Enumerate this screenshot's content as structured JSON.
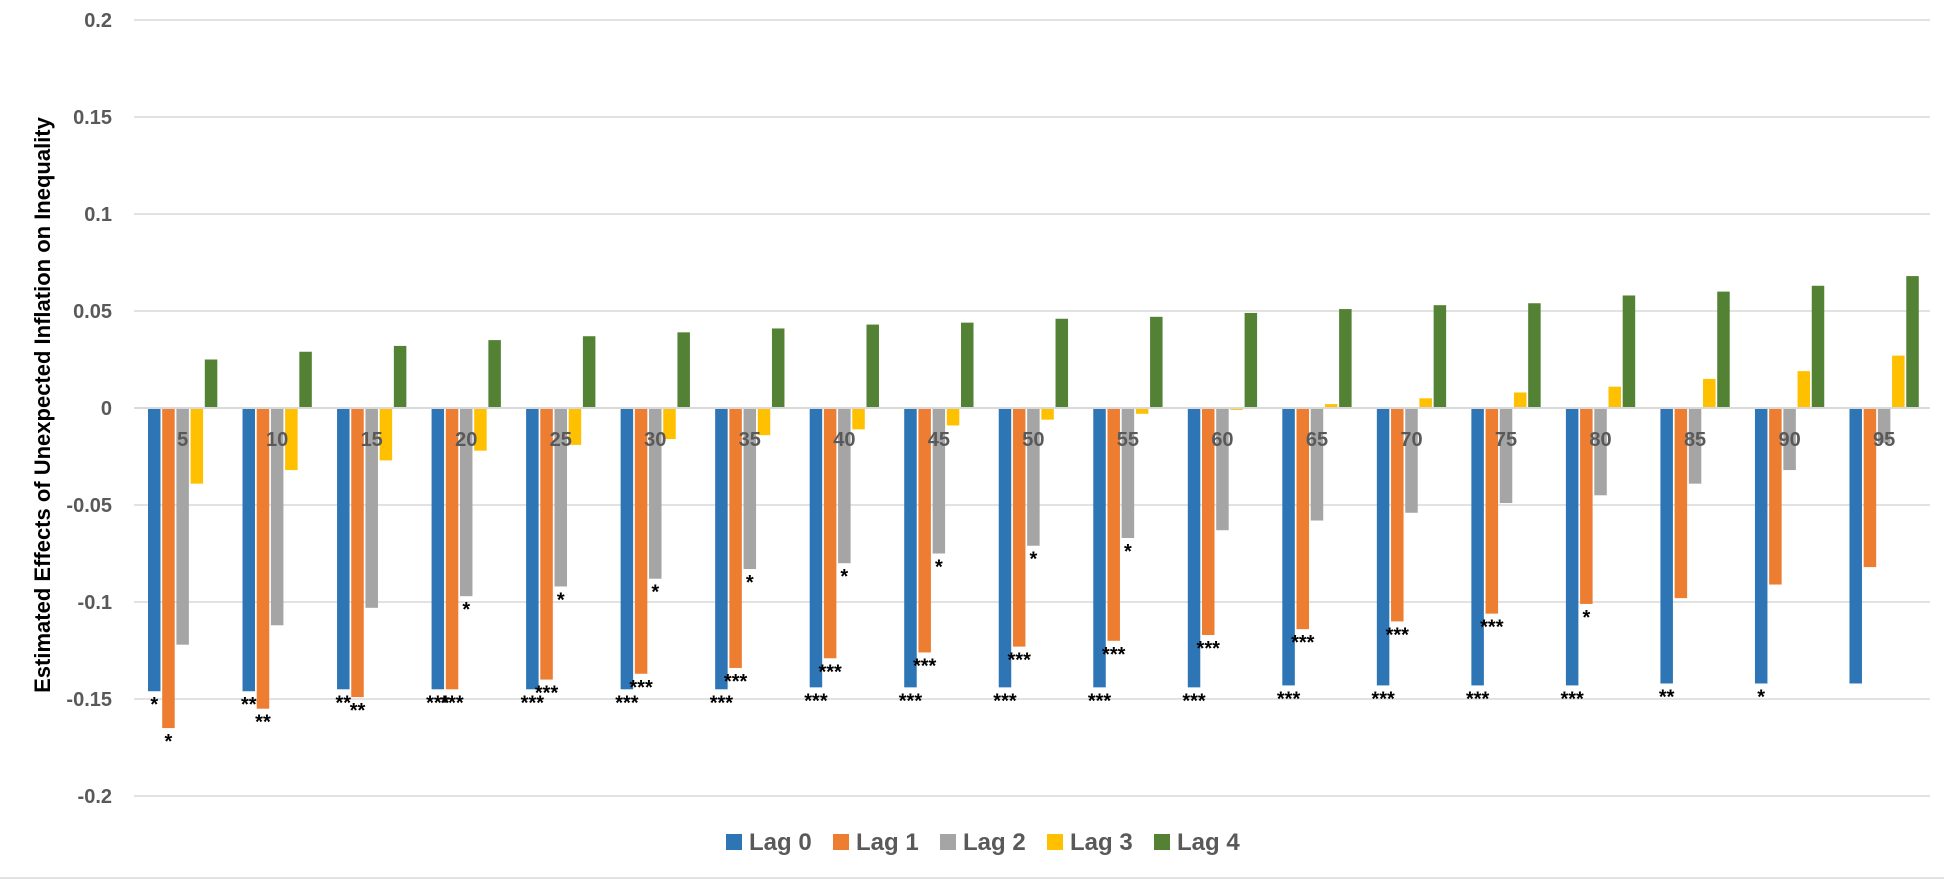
{
  "chart_data": {
    "type": "bar",
    "title": "",
    "xlabel": "",
    "ylabel": "Estimated Effects of Unexpected Inflation on Inequality",
    "ylim": [
      -0.2,
      0.2
    ],
    "yticks": [
      0.2,
      0.15,
      0.1,
      0.05,
      0,
      -0.05,
      -0.1,
      -0.15,
      -0.2
    ],
    "ytick_labels": [
      "0.2",
      "0.15",
      "0.1",
      "0.05",
      "0",
      "-0.05",
      "-0.1",
      "-0.15",
      "-0.2"
    ],
    "grid": true,
    "legend_position": "bottom",
    "categories": [
      "5",
      "10",
      "15",
      "20",
      "25",
      "30",
      "35",
      "40",
      "45",
      "50",
      "55",
      "60",
      "65",
      "70",
      "75",
      "80",
      "85",
      "90",
      "95"
    ],
    "series": [
      {
        "name": "Lag 0",
        "color": "#2E75B6",
        "values": [
          -0.146,
          -0.146,
          -0.145,
          -0.145,
          -0.145,
          -0.145,
          -0.145,
          -0.144,
          -0.144,
          -0.144,
          -0.144,
          -0.144,
          -0.143,
          -0.143,
          -0.143,
          -0.143,
          -0.142,
          -0.142,
          -0.142
        ],
        "significance": [
          "*",
          "**",
          "**",
          "***",
          "***",
          "***",
          "***",
          "***",
          "***",
          "***",
          "***",
          "***",
          "***",
          "***",
          "***",
          "***",
          "**",
          "*",
          ""
        ]
      },
      {
        "name": "Lag 1",
        "color": "#ED7D31",
        "values": [
          -0.165,
          -0.155,
          -0.149,
          -0.145,
          -0.14,
          -0.137,
          -0.134,
          -0.129,
          -0.126,
          -0.123,
          -0.12,
          -0.117,
          -0.114,
          -0.11,
          -0.106,
          -0.101,
          -0.098,
          -0.091,
          -0.082
        ],
        "significance": [
          "*",
          "**",
          "**",
          "***",
          "***",
          "***",
          "***",
          "***",
          "***",
          "***",
          "***",
          "***",
          "***",
          "***",
          "***",
          "*",
          "",
          "",
          ""
        ]
      },
      {
        "name": "Lag 2",
        "color": "#A5A5A5",
        "values": [
          -0.122,
          -0.112,
          -0.103,
          -0.097,
          -0.092,
          -0.088,
          -0.083,
          -0.08,
          -0.075,
          -0.071,
          -0.067,
          -0.063,
          -0.058,
          -0.054,
          -0.049,
          -0.045,
          -0.039,
          -0.032,
          -0.018
        ],
        "significance": [
          "",
          "",
          "",
          "*",
          "*",
          "*",
          "*",
          "*",
          "*",
          "*",
          "*",
          "",
          "",
          "",
          "",
          "",
          "",
          "",
          ""
        ]
      },
      {
        "name": "Lag 3",
        "color": "#FFC000",
        "values": [
          -0.039,
          -0.032,
          -0.027,
          -0.022,
          -0.019,
          -0.016,
          -0.014,
          -0.011,
          -0.009,
          -0.006,
          -0.003,
          -0.001,
          0.002,
          0.005,
          0.008,
          0.011,
          0.015,
          0.019,
          0.027
        ],
        "significance": [
          "",
          "",
          "",
          "",
          "",
          "",
          "",
          "",
          "",
          "",
          "",
          "",
          "",
          "",
          "",
          "",
          "",
          "",
          ""
        ]
      },
      {
        "name": "Lag 4",
        "color": "#548235",
        "values": [
          0.025,
          0.029,
          0.032,
          0.035,
          0.037,
          0.039,
          0.041,
          0.043,
          0.044,
          0.046,
          0.047,
          0.049,
          0.051,
          0.053,
          0.054,
          0.058,
          0.06,
          0.063,
          0.068
        ],
        "significance": [
          "",
          "",
          "",
          "",
          "",
          "",
          "",
          "",
          "",
          "",
          "",
          "",
          "",
          "",
          "",
          "",
          "",
          "",
          ""
        ]
      }
    ]
  }
}
